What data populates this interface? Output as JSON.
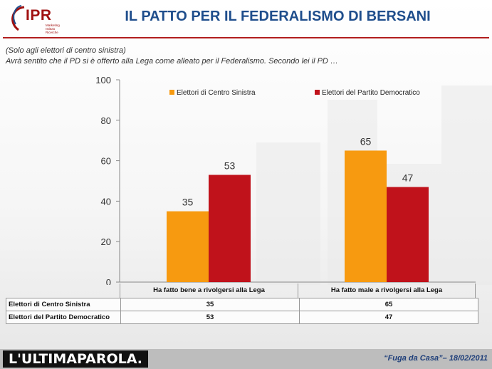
{
  "header": {
    "logo_text": "IPR",
    "logo_sub": "Marketing Istituto Ricerche",
    "title": "IL PATTO PER IL FEDERALISMO DI BERSANI"
  },
  "subtitle": {
    "line1": "(Solo agli elettori di centro sinistra)",
    "line2": "Avrà sentito che il PD si è offerto alla Lega come alleato per il Federalismo. Secondo lei il PD …"
  },
  "chart_data": {
    "type": "bar",
    "categories": [
      "Ha fatto bene a rivolgersi alla Lega",
      "Ha fatto male a rivolgersi alla Lega"
    ],
    "series": [
      {
        "name": "Elettori di Centro Sinistra",
        "values": [
          35,
          65
        ],
        "color": "#f79a10"
      },
      {
        "name": "Elettori del Partito Democratico",
        "values": [
          53,
          47
        ],
        "color": "#c0121b"
      }
    ],
    "ylim": [
      0,
      100
    ],
    "yticks": [
      0,
      20,
      40,
      60,
      80,
      100
    ],
    "legend_position": "top",
    "grid": false,
    "data_table": true
  },
  "table": {
    "rows": [
      {
        "label": "Elettori di Centro Sinistra",
        "values": [
          "35",
          "65"
        ]
      },
      {
        "label": "Elettori del Partito Democratico",
        "values": [
          "53",
          "47"
        ]
      }
    ]
  },
  "footer": {
    "brand": "L'ULTIMAPAROLA.",
    "note": "“Fuga da Casa”– 18/02/2011"
  }
}
